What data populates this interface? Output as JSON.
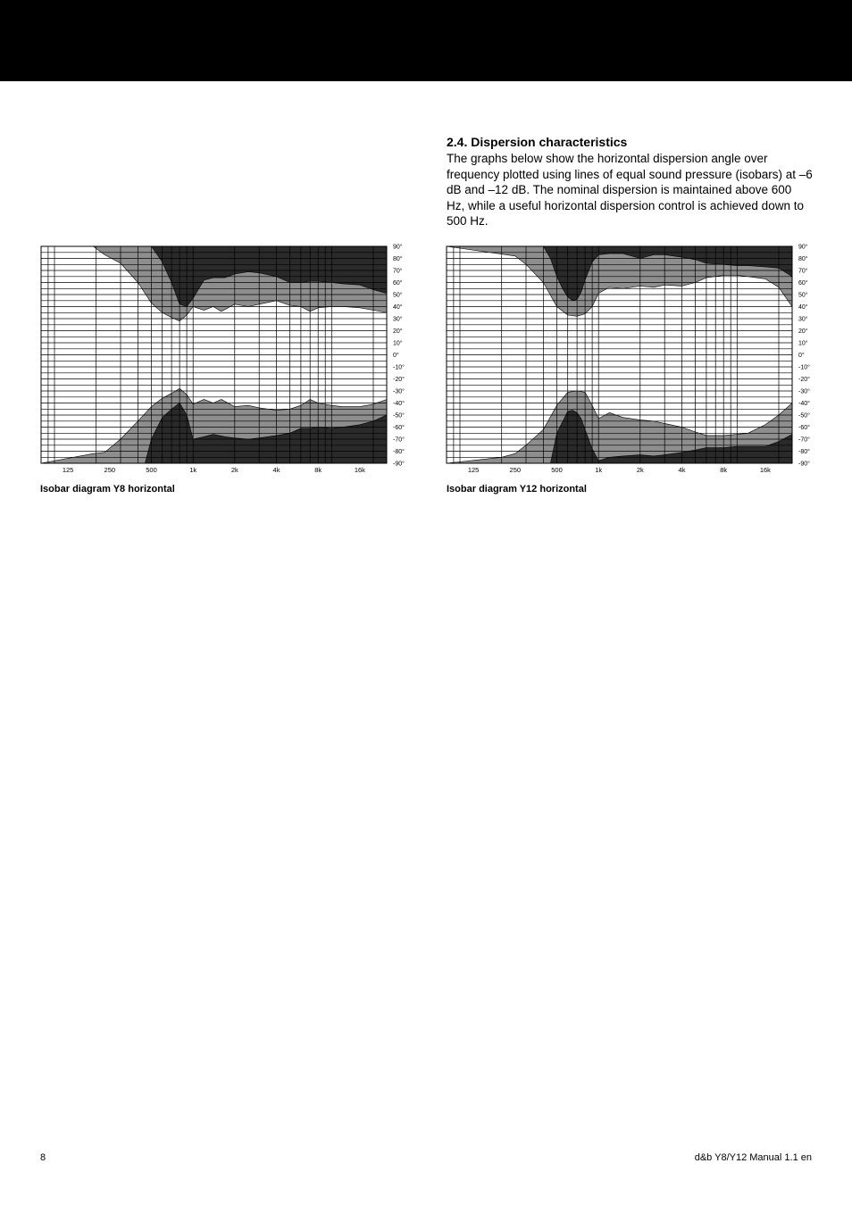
{
  "page": {
    "section_title": "2.4. Dispersion characteristics",
    "body_text": "The graphs below show the horizontal dispersion angle over frequency plotted using lines of equal sound pressure (isobars) at –6 dB and –12 dB. The nominal dispersion is maintained above 600 Hz, while a useful horizontal dispersion control is achieved down to 500 Hz.",
    "page_number": "8",
    "document_title": "d&b Y8/Y12 Manual 1.1 en"
  },
  "colors": {
    "dark": "#2a2a2a",
    "mid": "#8e8e8e",
    "grid": "#000000"
  },
  "chart_data": [
    {
      "type": "area",
      "caption": "Isobar diagram Y8 horizontal",
      "x_tick_labels": [
        "125",
        "250",
        "500",
        "1k",
        "2k",
        "4k",
        "8k",
        "16k"
      ],
      "x_ticks_hz": [
        125,
        250,
        500,
        1000,
        2000,
        4000,
        8000,
        16000
      ],
      "xlim_hz": [
        80,
        25000
      ],
      "y_tick_labels": [
        "90°",
        "80°",
        "70°",
        "60°",
        "50°",
        "40°",
        "30°",
        "20°",
        "10°",
        "0°",
        "-10°",
        "-20°",
        "-30°",
        "-40°",
        "-50°",
        "-60°",
        "-70°",
        "-80°",
        "-90°"
      ],
      "ylim_deg": [
        -90,
        90
      ],
      "grid": true,
      "isobars": {
        "upper_minus6": {
          "x": [
            80,
            200,
            300,
            400,
            500,
            600,
            700,
            800,
            900,
            1000,
            1200,
            1400,
            1700,
            2000,
            2500,
            3000,
            4000,
            5000,
            6000,
            7000,
            8000,
            10000,
            12000,
            16000,
            20000,
            25000
          ],
          "y": [
            90,
            90,
            90,
            90,
            90,
            77,
            60,
            42,
            40,
            47,
            62,
            64,
            64,
            67,
            69,
            68,
            65,
            60,
            60,
            61,
            61,
            60,
            59,
            58,
            54,
            51
          ]
        },
        "upper_minus12": {
          "x": [
            80,
            190,
            230,
            300,
            400,
            500,
            600,
            700,
            800,
            900,
            1000,
            1200,
            1400,
            1600,
            2000,
            2500,
            3000,
            4000,
            5000,
            6000,
            7000,
            8000,
            10000,
            12000,
            16000,
            20000,
            25000
          ],
          "y": [
            90,
            90,
            83,
            76,
            60,
            43,
            35,
            31,
            28,
            33,
            40,
            37,
            40,
            36,
            42,
            40,
            42,
            45,
            41,
            40,
            36,
            39,
            40,
            40,
            39,
            37,
            35
          ]
        },
        "lower_minus12": {
          "x": [
            80,
            190,
            230,
            300,
            400,
            500,
            600,
            700,
            800,
            900,
            1000,
            1200,
            1400,
            1600,
            2000,
            2500,
            3000,
            4000,
            5000,
            6000,
            7000,
            8000,
            10000,
            12000,
            16000,
            20000,
            25000
          ],
          "y": [
            -90,
            -82,
            -81,
            -70,
            -55,
            -43,
            -36,
            -32,
            -28,
            -33,
            -41,
            -37,
            -40,
            -37,
            -43,
            -42,
            -44,
            -46,
            -45,
            -42,
            -37,
            -40,
            -42,
            -43,
            -43,
            -41,
            -37
          ]
        },
        "lower_minus6": {
          "x": [
            80,
            450,
            500,
            600,
            700,
            800,
            900,
            1000,
            1200,
            1400,
            1700,
            2000,
            2500,
            3000,
            4000,
            5000,
            6000,
            7000,
            8000,
            10000,
            12000,
            16000,
            20000,
            25000
          ],
          "y": [
            -90,
            -90,
            -70,
            -52,
            -45,
            -40,
            -50,
            -70,
            -68,
            -66,
            -68,
            -69,
            -70,
            -69,
            -67,
            -65,
            -61,
            -61,
            -60,
            -61,
            -60,
            -58,
            -55,
            -50
          ]
        }
      }
    },
    {
      "type": "area",
      "caption": "Isobar diagram Y12 horizontal",
      "x_tick_labels": [
        "125",
        "250",
        "500",
        "1k",
        "2k",
        "4k",
        "8k",
        "16k"
      ],
      "x_ticks_hz": [
        125,
        250,
        500,
        1000,
        2000,
        4000,
        8000,
        16000
      ],
      "xlim_hz": [
        80,
        25000
      ],
      "y_tick_labels": [
        "90°",
        "80°",
        "70°",
        "60°",
        "50°",
        "40°",
        "30°",
        "20°",
        "10°",
        "0°",
        "-10°",
        "-20°",
        "-30°",
        "-40°",
        "-50°",
        "-60°",
        "-70°",
        "-80°",
        "-90°"
      ],
      "ylim_deg": [
        -90,
        90
      ],
      "grid": true,
      "isobars": {
        "upper_minus6": {
          "x": [
            80,
            400,
            450,
            500,
            550,
            600,
            650,
            700,
            750,
            800,
            900,
            1000,
            1200,
            1500,
            2000,
            2500,
            3000,
            4000,
            5000,
            6000,
            8000,
            10000,
            12000,
            16000,
            20000,
            25000
          ],
          "y": [
            90,
            90,
            80,
            65,
            55,
            48,
            45,
            46,
            52,
            62,
            77,
            83,
            84,
            84,
            80,
            83,
            83,
            81,
            79,
            76,
            75,
            74,
            74,
            73,
            72,
            65
          ]
        },
        "upper_minus12": {
          "x": [
            80,
            250,
            300,
            400,
            500,
            600,
            700,
            800,
            900,
            1000,
            1200,
            1500,
            2000,
            2500,
            3000,
            4000,
            5000,
            6000,
            8000,
            10000,
            12000,
            16000,
            20000,
            25000
          ],
          "y": [
            90,
            82,
            75,
            60,
            40,
            33,
            32,
            34,
            40,
            51,
            56,
            55,
            57,
            56,
            58,
            57,
            60,
            64,
            66,
            66,
            65,
            63,
            56,
            40
          ]
        },
        "lower_minus12": {
          "x": [
            80,
            200,
            250,
            300,
            400,
            500,
            600,
            700,
            800,
            900,
            1000,
            1200,
            1500,
            2000,
            2500,
            3000,
            4000,
            5000,
            6000,
            8000,
            10000,
            12000,
            16000,
            20000,
            25000
          ],
          "y": [
            -90,
            -85,
            -82,
            -75,
            -62,
            -42,
            -31,
            -30,
            -31,
            -42,
            -53,
            -48,
            -52,
            -54,
            -55,
            -57,
            -60,
            -64,
            -67,
            -67,
            -66,
            -65,
            -58,
            -50,
            -40
          ]
        },
        "lower_minus6": {
          "x": [
            80,
            450,
            500,
            600,
            650,
            700,
            750,
            800,
            900,
            1000,
            1200,
            1500,
            2000,
            2500,
            3000,
            4000,
            5000,
            6000,
            8000,
            10000,
            12000,
            16000,
            20000,
            25000
          ],
          "y": [
            -90,
            -90,
            -65,
            -47,
            -46,
            -48,
            -53,
            -62,
            -78,
            -88,
            -85,
            -84,
            -83,
            -84,
            -83,
            -81,
            -79,
            -77,
            -77,
            -76,
            -76,
            -76,
            -72,
            -66
          ]
        }
      }
    }
  ]
}
